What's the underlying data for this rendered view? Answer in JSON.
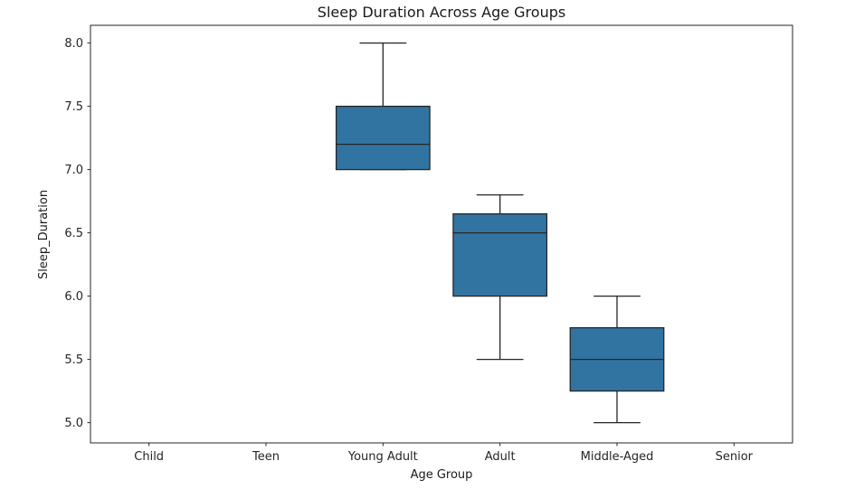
{
  "chart_data": {
    "type": "box",
    "title": "Sleep Duration Across Age Groups",
    "xlabel": "Age Group",
    "ylabel": "Sleep_Duration",
    "categories": [
      "Child",
      "Teen",
      "Young Adult",
      "Adult",
      "Middle-Aged",
      "Senior"
    ],
    "yticks": [
      5.0,
      5.5,
      6.0,
      6.5,
      7.0,
      7.5,
      8.0
    ],
    "ytick_labels": [
      "5.0",
      "5.5",
      "6.0",
      "6.5",
      "7.0",
      "7.5",
      "8.0"
    ],
    "ylim": [
      4.84,
      8.14
    ],
    "grid": false,
    "legend": "none",
    "boxes": [
      null,
      null,
      {
        "category": "Young Adult",
        "whisker_low": 7.0,
        "q1": 7.0,
        "median": 7.2,
        "q3": 7.5,
        "whisker_high": 8.0
      },
      {
        "category": "Adult",
        "whisker_low": 5.5,
        "q1": 6.0,
        "median": 6.5,
        "q3": 6.65,
        "whisker_high": 6.8
      },
      {
        "category": "Middle-Aged",
        "whisker_low": 5.0,
        "q1": 5.25,
        "median": 5.5,
        "q3": 5.75,
        "whisker_high": 6.0
      },
      null
    ],
    "colors": {
      "box_fill": "#3274a1",
      "box_edge": "#262626",
      "whisker": "#262626",
      "median": "#262626",
      "spine": "#262626",
      "text": "#262626",
      "background": "#ffffff"
    }
  }
}
